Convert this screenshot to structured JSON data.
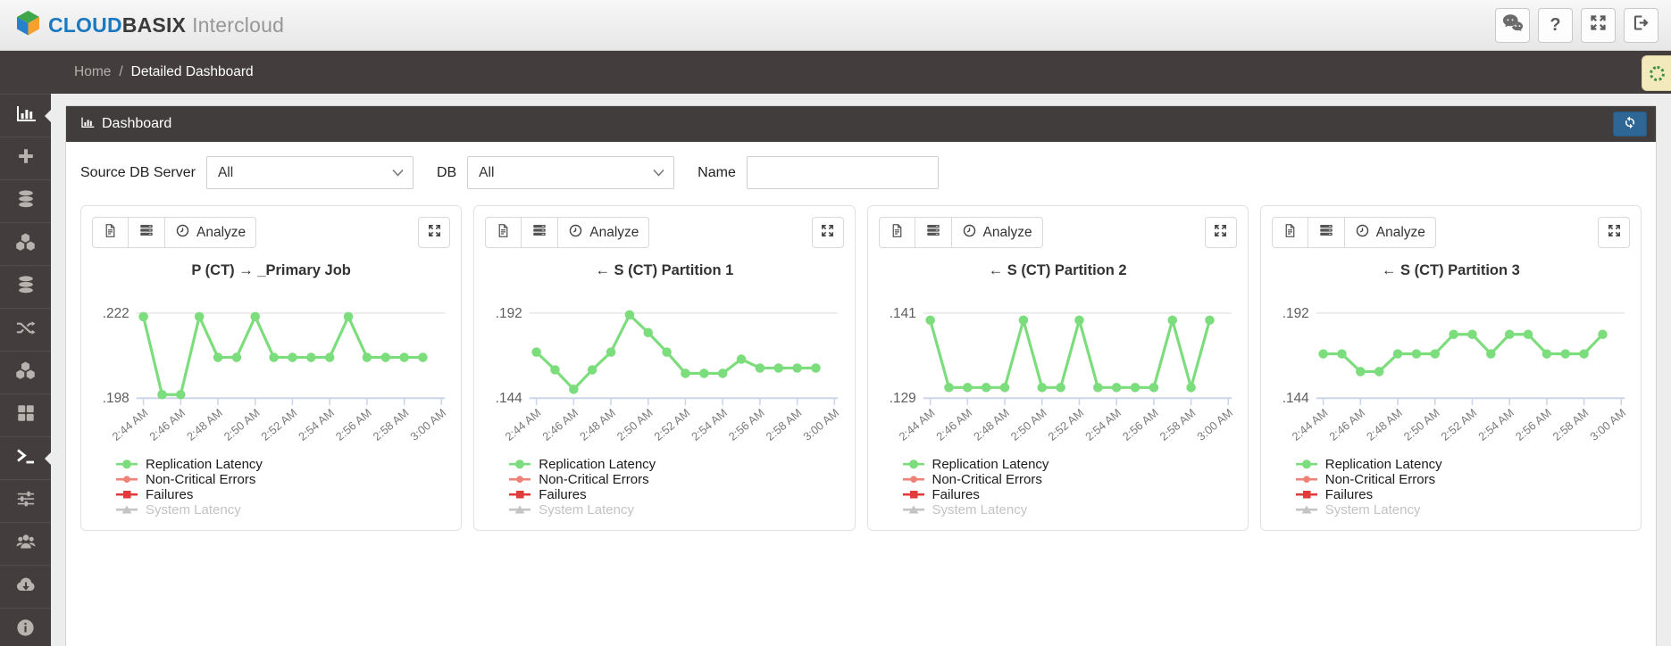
{
  "topbar": {
    "brand": {
      "cloud": "CLOUD",
      "basix": "BASIX",
      "suffix": "Intercloud",
      "cloud_color": "#1b79c0",
      "logo_icon": "cube-logo-icon"
    },
    "actions": [
      {
        "name": "comments",
        "icon": "chat-bubbles-icon"
      },
      {
        "name": "help",
        "icon": "question-icon",
        "glyph": "?"
      },
      {
        "name": "fullscreen",
        "icon": "fullscreen-arrows-icon"
      },
      {
        "name": "sign-out",
        "icon": "sign-out-icon"
      }
    ]
  },
  "breadcrumb": {
    "home": "Home",
    "separator": "/",
    "current": "Detailed Dashboard"
  },
  "sidebar": {
    "items": [
      {
        "icon": "bar-chart-icon",
        "active": true
      },
      {
        "icon": "plus-icon",
        "active": false
      },
      {
        "icon": "database-icon",
        "active": false
      },
      {
        "icon": "cubes-icon",
        "active": false
      },
      {
        "icon": "database-icon",
        "active": false
      },
      {
        "icon": "shuffle-icon",
        "active": false
      },
      {
        "icon": "cubes-icon",
        "active": false
      },
      {
        "icon": "grid-icon",
        "active": false
      },
      {
        "icon": "terminal-icon",
        "active": true
      },
      {
        "icon": "sliders-icon",
        "active": false
      },
      {
        "icon": "users-icon",
        "active": false
      },
      {
        "icon": "cloud-download-icon",
        "active": false
      },
      {
        "icon": "info-icon",
        "active": false
      }
    ]
  },
  "panel": {
    "title": "Dashboard",
    "refresh_icon": "refresh-icon"
  },
  "filters": {
    "source_db_label": "Source DB Server",
    "source_db_value": "All",
    "db_label": "DB",
    "db_value": "All",
    "name_label": "Name",
    "name_value": ""
  },
  "card_toolbar": {
    "analyze_label": "Analyze",
    "icons": [
      "file-icon",
      "server-icon",
      "clock-icon",
      "expand-icon"
    ]
  },
  "legend": [
    {
      "label": "Replication Latency",
      "color": "#7cdd7c",
      "marker": "circle",
      "enabled": true
    },
    {
      "label": "Non-Critical Errors",
      "color": "#ef8276",
      "marker": "circle-small",
      "enabled": true
    },
    {
      "label": "Failures",
      "color": "#e23b3b",
      "marker": "square",
      "enabled": true
    },
    {
      "label": "System Latency",
      "color": "#c4c4c4",
      "marker": "triangle",
      "enabled": false
    }
  ],
  "chart_data": [
    {
      "type": "line",
      "title": "P (CT) → _Primary Job",
      "ylim": [
        0.198,
        0.222
      ],
      "yticks": {
        "top": ".222",
        "bottom": ".198"
      },
      "xticks": [
        "2:44 AM",
        "2:46 AM",
        "2:48 AM",
        "2:50 AM",
        "2:52 AM",
        "2:54 AM",
        "2:56 AM",
        "2:58 AM",
        "3:00 AM"
      ],
      "x_minutes": [
        "2:44",
        "2:45",
        "2:46",
        "2:47",
        "2:48",
        "2:49",
        "2:50",
        "2:51",
        "2:52",
        "2:53",
        "2:54",
        "2:55",
        "2:56",
        "2:57",
        "2:58",
        "2:59"
      ],
      "series": [
        {
          "name": "Replication Latency",
          "color": "#7cdd7c",
          "values": [
            0.221,
            0.199,
            0.199,
            0.221,
            0.2095,
            0.2095,
            0.221,
            0.2095,
            0.2095,
            0.2095,
            0.2095,
            0.221,
            0.2095,
            0.2095,
            0.2095,
            0.2095
          ]
        }
      ],
      "grid": "top-line-only",
      "legend_position": "bottom-left"
    },
    {
      "type": "line",
      "title": "← S (CT) Partition 1",
      "ylim": [
        0.144,
        0.192
      ],
      "yticks": {
        "top": ".192",
        "bottom": ".144"
      },
      "xticks": [
        "2:44 AM",
        "2:46 AM",
        "2:48 AM",
        "2:50 AM",
        "2:52 AM",
        "2:54 AM",
        "2:56 AM",
        "2:58 AM",
        "3:00 AM"
      ],
      "x_minutes": [
        "2:44",
        "2:45",
        "2:46",
        "2:47",
        "2:48",
        "2:49",
        "2:50",
        "2:51",
        "2:52",
        "2:53",
        "2:54",
        "2:55",
        "2:56",
        "2:57",
        "2:58",
        "2:59"
      ],
      "series": [
        {
          "name": "Replication Latency",
          "color": "#7cdd7c",
          "values": [
            0.17,
            0.16,
            0.149,
            0.16,
            0.17,
            0.191,
            0.181,
            0.17,
            0.158,
            0.158,
            0.158,
            0.166,
            0.161,
            0.161,
            0.161,
            0.161
          ]
        }
      ],
      "grid": "top-line-only",
      "legend_position": "bottom-left"
    },
    {
      "type": "line",
      "title": "← S (CT) Partition 2",
      "ylim": [
        0.129,
        0.141
      ],
      "yticks": {
        "top": ".141",
        "bottom": ".129"
      },
      "xticks": [
        "2:44 AM",
        "2:46 AM",
        "2:48 AM",
        "2:50 AM",
        "2:52 AM",
        "2:54 AM",
        "2:56 AM",
        "2:58 AM",
        "3:00 AM"
      ],
      "x_minutes": [
        "2:44",
        "2:45",
        "2:46",
        "2:47",
        "2:48",
        "2:49",
        "2:50",
        "2:51",
        "2:52",
        "2:53",
        "2:54",
        "2:55",
        "2:56",
        "2:57",
        "2:58",
        "2:59"
      ],
      "series": [
        {
          "name": "Replication Latency",
          "color": "#7cdd7c",
          "values": [
            0.14,
            0.1305,
            0.1305,
            0.1305,
            0.1305,
            0.14,
            0.1305,
            0.1305,
            0.14,
            0.1305,
            0.1305,
            0.1305,
            0.1305,
            0.14,
            0.1305,
            0.14
          ]
        }
      ],
      "grid": "top-line-only",
      "legend_position": "bottom-left"
    },
    {
      "type": "line",
      "title": "← S (CT) Partition 3",
      "ylim": [
        0.144,
        0.192
      ],
      "yticks": {
        "top": ".192",
        "bottom": ".144"
      },
      "xticks": [
        "2:44 AM",
        "2:46 AM",
        "2:48 AM",
        "2:50 AM",
        "2:52 AM",
        "2:54 AM",
        "2:56 AM",
        "2:58 AM",
        "3:00 AM"
      ],
      "x_minutes": [
        "2:44",
        "2:45",
        "2:46",
        "2:47",
        "2:48",
        "2:49",
        "2:50",
        "2:51",
        "2:52",
        "2:53",
        "2:54",
        "2:55",
        "2:56",
        "2:57",
        "2:58",
        "2:59"
      ],
      "series": [
        {
          "name": "Replication Latency",
          "color": "#7cdd7c",
          "values": [
            0.169,
            0.169,
            0.159,
            0.159,
            0.169,
            0.169,
            0.169,
            0.18,
            0.18,
            0.169,
            0.18,
            0.18,
            0.169,
            0.169,
            0.169,
            0.18
          ]
        }
      ],
      "grid": "top-line-only",
      "legend_position": "bottom-left"
    }
  ]
}
